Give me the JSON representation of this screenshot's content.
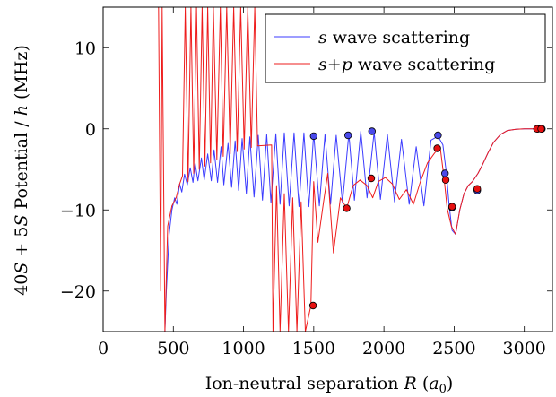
{
  "chart_data": {
    "type": "line",
    "xlabel": "Ion-neutral separation R (a0)",
    "ylabel": "40S + 5S Potential / h (MHz)",
    "xlim": [
      0,
      3200
    ],
    "ylim": [
      -25,
      15
    ],
    "xticks": [
      0,
      500,
      1000,
      1500,
      2000,
      2500,
      3000
    ],
    "xtick_labels": [
      "0",
      "500",
      "1000",
      "1500",
      "2000",
      "2500",
      "3000"
    ],
    "yticks": [
      -20,
      -10,
      0,
      10
    ],
    "ytick_labels": [
      "−20",
      "−10",
      "0",
      "10"
    ],
    "grid": false,
    "legend_position": "top-right",
    "series": [
      {
        "name": "s wave scattering",
        "color": "#3b3bff",
        "x": [
          440,
          450,
          470,
          490,
          510,
          525,
          545,
          560,
          580,
          600,
          620,
          640,
          655,
          675,
          700,
          720,
          745,
          770,
          790,
          815,
          840,
          860,
          890,
          915,
          940,
          965,
          990,
          1020,
          1045,
          1075,
          1105,
          1135,
          1165,
          1195,
          1230,
          1260,
          1290,
          1325,
          1360,
          1395,
          1430,
          1465,
          1500,
          1540,
          1580,
          1620,
          1660,
          1705,
          1750,
          1790,
          1835,
          1880,
          1930,
          1975,
          2025,
          2075,
          2125,
          2180,
          2230,
          2285,
          2335,
          2385,
          2420,
          2445,
          2465,
          2485,
          2510,
          2540,
          2570,
          2600,
          2630,
          2670,
          2700,
          2740,
          2780,
          2830,
          2880,
          2940,
          3000,
          3060,
          3120
        ],
        "y": [
          -25,
          -20,
          -13,
          -10,
          -8.5,
          -9.3,
          -6.8,
          -7.8,
          -5.6,
          -6.9,
          -4.8,
          -6.6,
          -4.2,
          -6.4,
          -3.6,
          -6.3,
          -3.1,
          -6.4,
          -2.6,
          -6.6,
          -2.2,
          -6.9,
          -1.8,
          -7.2,
          -1.5,
          -7.6,
          -1.2,
          -8.0,
          -1.0,
          -8.4,
          -0.8,
          -8.8,
          -0.7,
          -9.1,
          -0.6,
          -9.3,
          -0.5,
          -9.5,
          -0.5,
          -9.6,
          -0.5,
          -9.6,
          -0.6,
          -9.5,
          -0.7,
          -9.3,
          -0.8,
          -9.1,
          -0.6,
          -8.8,
          -0.3,
          -8.5,
          -0.4,
          -8.7,
          -0.7,
          -9.0,
          -1.3,
          -9.3,
          -2.2,
          -9.5,
          -1.4,
          -0.9,
          -2.0,
          -5.5,
          -9.5,
          -12.5,
          -13.0,
          -10.0,
          -8.0,
          -7.0,
          -6.5,
          -5.5,
          -4.5,
          -3.0,
          -1.7,
          -0.7,
          -0.2,
          -0.05,
          0,
          0,
          0
        ]
      },
      {
        "name": "s+p wave scattering",
        "color": "#ee1c1c",
        "x": [
          395,
          410,
          420,
          440,
          460,
          490,
          520,
          545,
          565,
          585,
          605,
          625,
          645,
          665,
          685,
          705,
          725,
          745,
          765,
          785,
          810,
          835,
          855,
          880,
          905,
          930,
          955,
          980,
          1005,
          1030,
          1055,
          1080,
          1100,
          1200,
          1210,
          1235,
          1260,
          1290,
          1320,
          1350,
          1380,
          1410,
          1440,
          1480,
          1500,
          1530,
          1570,
          1600,
          1640,
          1690,
          1735,
          1780,
          1830,
          1880,
          1920,
          1960,
          2010,
          2060,
          2110,
          2160,
          2210,
          2260,
          2310,
          2360,
          2400,
          2430,
          2450,
          2480,
          2510,
          2540,
          2570,
          2600,
          2630,
          2670,
          2700,
          2740,
          2780,
          2830,
          2880,
          2940,
          3000,
          3060,
          3120
        ],
        "y": [
          15,
          -20,
          15,
          -25,
          -12,
          -9.5,
          -8.5,
          -6.8,
          -5.8,
          15,
          -6.5,
          15,
          -5.5,
          15,
          -5.0,
          15,
          -4.6,
          15,
          -4.2,
          15,
          -3.8,
          15,
          -3.4,
          15,
          -3.1,
          15,
          -2.8,
          15,
          -2.5,
          15,
          -2.3,
          15,
          -2.1,
          -2.0,
          -25,
          -7.0,
          -25,
          -8.0,
          -25,
          -8.5,
          -25,
          -9.0,
          -25,
          -21.8,
          -6.5,
          -14.0,
          -9.0,
          -5.5,
          -15.3,
          -8.5,
          -9.8,
          -7.0,
          -6.3,
          -7.0,
          -8.5,
          -6.5,
          -6.0,
          -6.8,
          -8.7,
          -7.5,
          -9.3,
          -6.5,
          -4.2,
          -3.0,
          -2.2,
          -6.3,
          -9.8,
          -12.0,
          -13.0,
          -10.0,
          -8.0,
          -7.0,
          -6.5,
          -5.5,
          -4.5,
          -3.0,
          -1.7,
          -0.7,
          -0.2,
          -0.05,
          0,
          0,
          0
        ]
      }
    ],
    "markers": {
      "blue": {
        "color": "#4a4aea",
        "points": [
          [
            1500,
            -0.9
          ],
          [
            1745,
            -0.8
          ],
          [
            1915,
            -0.3
          ],
          [
            2385,
            -0.8
          ],
          [
            2435,
            -5.5
          ],
          [
            2485,
            -9.7
          ],
          [
            2665,
            -7.6
          ],
          [
            3095,
            0
          ],
          [
            3125,
            0
          ]
        ]
      },
      "red": {
        "color": "#e61010",
        "points": [
          [
            1495,
            -21.8
          ],
          [
            1735,
            -9.8
          ],
          [
            1910,
            -6.1
          ],
          [
            2380,
            -2.4
          ],
          [
            2440,
            -6.3
          ],
          [
            2485,
            -9.6
          ],
          [
            2665,
            -7.4
          ],
          [
            3090,
            0
          ],
          [
            3120,
            0
          ]
        ]
      }
    },
    "legend": [
      {
        "label": "s wave scattering",
        "color": "#3b3bff"
      },
      {
        "label": "s+p wave scattering",
        "color": "#ee1c1c"
      }
    ]
  }
}
